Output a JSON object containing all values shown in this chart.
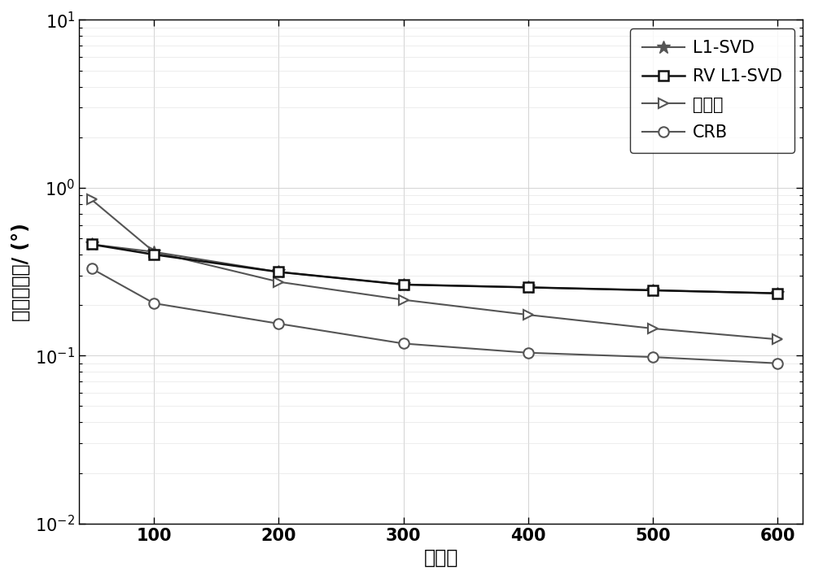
{
  "x": [
    50,
    100,
    200,
    300,
    400,
    500,
    600
  ],
  "L1_SVD": [
    0.46,
    0.415,
    0.315,
    0.265,
    0.255,
    0.245,
    0.235
  ],
  "RV_L1_SVD": [
    0.46,
    0.4,
    0.315,
    0.265,
    0.255,
    0.245,
    0.235
  ],
  "ben_faming": [
    0.85,
    0.415,
    0.275,
    0.215,
    0.175,
    0.145,
    0.125
  ],
  "CRB": [
    0.33,
    0.205,
    0.155,
    0.118,
    0.104,
    0.098,
    0.09
  ],
  "line_color": "#555555",
  "xlabel": "快拍数",
  "ylabel": "均方根误差/ (°)",
  "ylim_bottom": 0.01,
  "ylim_top": 10,
  "xlim_left": 40,
  "xlim_right": 620,
  "xticks": [
    100,
    200,
    300,
    400,
    500,
    600
  ],
  "legend_labels": [
    "L1-SVD",
    "RV L1-SVD",
    "本发明",
    "CRB"
  ],
  "linewidth": 1.5,
  "markersize": 9,
  "fontsize_label": 17,
  "fontsize_tick": 15,
  "fontsize_legend": 15,
  "background_color": "#ffffff",
  "grid_color": "#cccccc"
}
